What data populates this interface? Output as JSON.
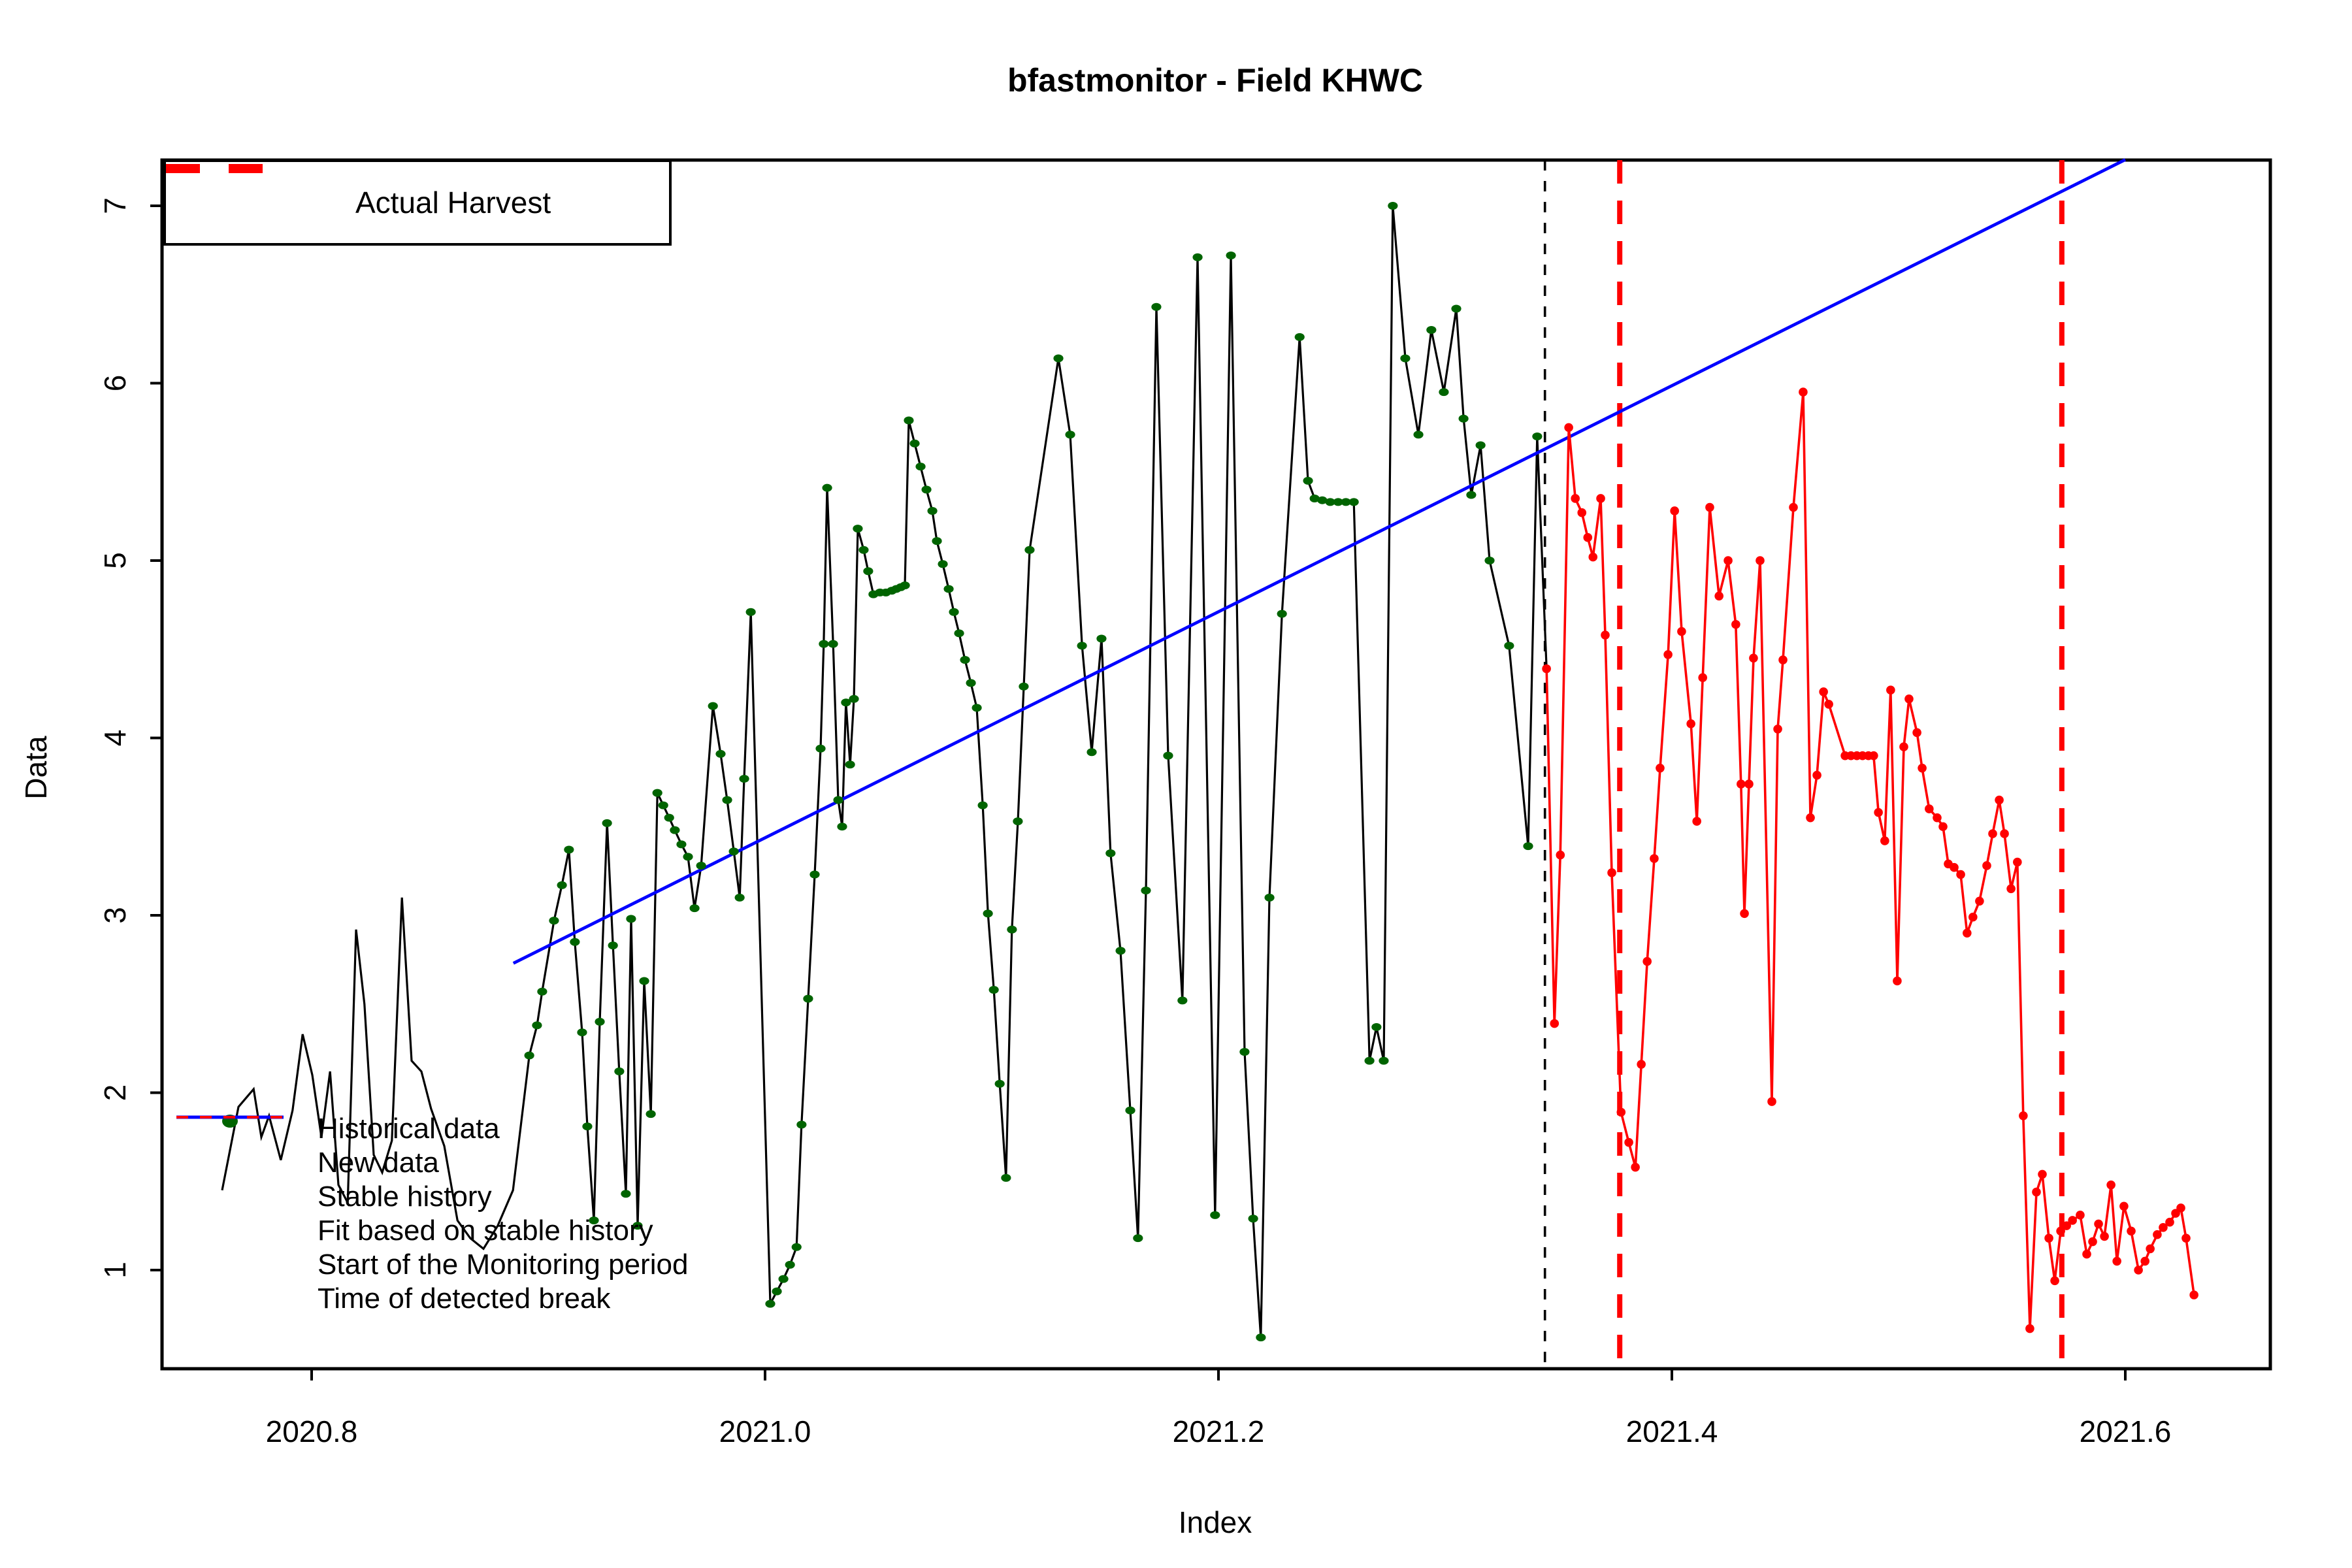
{
  "title": "bfastmonitor - Field KHWC",
  "x_axis_label": "Index",
  "y_axis_label": "Data",
  "legend_top": {
    "items": [
      {
        "label": "Actual Harvest",
        "style": "dashed-thick",
        "color": "#FF0000"
      }
    ]
  },
  "legend_bottom": {
    "items": [
      {
        "label": "Historical data",
        "style": "solid",
        "color": "#000000"
      },
      {
        "label": "New data",
        "style": "solid",
        "color": "#FF0000"
      },
      {
        "label": "Stable history",
        "style": "point",
        "color": "#006400"
      },
      {
        "label": "Fit based on stable history",
        "style": "solid",
        "color": "#0000FF"
      },
      {
        "label": "Start of the Monitoring period",
        "style": "dashed",
        "color": "#000000"
      },
      {
        "label": "Time of detected break",
        "style": "dashed",
        "color": "#FF0000"
      }
    ]
  },
  "chart_data": {
    "type": "line",
    "title": "bfastmonitor - Field KHWC",
    "xlabel": "Index",
    "ylabel": "Data",
    "xlim": [
      2020.734,
      2021.664
    ],
    "ylim": [
      0.44,
      7.26
    ],
    "x_ticks": [
      2020.8,
      2021.0,
      2021.2,
      2021.4,
      2021.6
    ],
    "y_ticks": [
      1,
      2,
      3,
      4,
      5,
      6,
      7
    ],
    "grid": false,
    "colors": {
      "historical": "#000000",
      "new_data": "#FF0000",
      "stable_history": "#006400",
      "fit": "#0000FF",
      "monitor_start": "#000000",
      "break_line": "#FF0000",
      "harvest_line": "#FF0000"
    },
    "vlines": {
      "monitor_start": {
        "t": 2021.344,
        "label": "Start of the Monitoring period"
      },
      "detected_break": {
        "t": 2021.377,
        "label": "Time of detected break"
      },
      "actual_harvest": {
        "t": 2021.572,
        "label": "Actual Harvest"
      }
    },
    "fit_line": {
      "points": [
        [
          2020.889,
          2.73
        ],
        [
          2021.6,
          7.26
        ]
      ]
    },
    "series": [
      {
        "name": "Historical data (pre-stable, line only)",
        "points": [
          [
            2020.7605,
            1.45
          ],
          [
            2020.7677,
            1.92
          ],
          [
            2020.7744,
            2.02
          ],
          [
            2020.7778,
            1.75
          ],
          [
            2020.7812,
            1.87
          ],
          [
            2020.7864,
            1.62
          ],
          [
            2020.7916,
            1.9
          ],
          [
            2020.796,
            2.33
          ],
          [
            2020.8003,
            2.1
          ],
          [
            2020.8043,
            1.75
          ],
          [
            2020.8081,
            2.12
          ],
          [
            2020.8118,
            1.48
          ],
          [
            2020.8159,
            1.38
          ],
          [
            2020.8196,
            2.92
          ],
          [
            2020.8233,
            2.5
          ],
          [
            2020.8274,
            1.65
          ],
          [
            2020.8311,
            1.55
          ],
          [
            2020.8354,
            1.73
          ],
          [
            2020.8398,
            3.1
          ],
          [
            2020.8441,
            2.18
          ],
          [
            2020.8484,
            2.12
          ],
          [
            2020.8527,
            1.91
          ],
          [
            2020.8585,
            1.7
          ],
          [
            2020.8643,
            1.28
          ],
          [
            2020.87,
            1.18
          ],
          [
            2020.8758,
            1.12
          ],
          [
            2020.8821,
            1.25
          ],
          [
            2020.8888,
            1.45
          ]
        ]
      },
      {
        "name": "Stable history (green points)",
        "points": [
          [
            2020.896,
            2.21
          ],
          [
            2020.8994,
            2.38
          ],
          [
            2020.9017,
            2.57
          ],
          [
            2020.9069,
            2.97
          ],
          [
            2020.9104,
            3.17
          ],
          [
            2020.9135,
            3.37
          ],
          [
            2020.9161,
            2.85
          ],
          [
            2020.9193,
            2.34
          ],
          [
            2020.9216,
            1.81
          ],
          [
            2020.9245,
            1.28
          ],
          [
            2020.9271,
            2.4
          ],
          [
            2020.9303,
            3.52
          ],
          [
            2020.9329,
            2.83
          ],
          [
            2020.9357,
            2.12
          ],
          [
            2020.9386,
            1.43
          ],
          [
            2020.9409,
            2.98
          ],
          [
            2020.9438,
            1.25
          ],
          [
            2020.9467,
            2.63
          ],
          [
            2020.9496,
            1.88
          ],
          [
            2020.9525,
            3.69
          ],
          [
            2020.9551,
            3.62
          ],
          [
            2020.9577,
            3.55
          ],
          [
            2020.9602,
            3.48
          ],
          [
            2020.9631,
            3.4
          ],
          [
            2020.966,
            3.33
          ],
          [
            2020.9689,
            3.04
          ],
          [
            2020.9718,
            3.28
          ],
          [
            2020.977,
            4.18
          ],
          [
            2020.9804,
            3.91
          ],
          [
            2020.9833,
            3.65
          ],
          [
            2020.9862,
            3.36
          ],
          [
            2020.9888,
            3.1
          ],
          [
            2020.9908,
            3.77
          ],
          [
            2020.9937,
            4.71
          ],
          [
            2021.0023,
            0.81
          ],
          [
            2021.0052,
            0.88
          ],
          [
            2021.0081,
            0.95
          ],
          [
            2021.011,
            1.03
          ],
          [
            2021.0139,
            1.13
          ],
          [
            2021.0161,
            1.82
          ],
          [
            2021.019,
            2.53
          ],
          [
            2021.0219,
            3.23
          ],
          [
            2021.0245,
            3.94
          ],
          [
            2021.0259,
            4.53
          ],
          [
            2021.0274,
            5.41
          ],
          [
            2021.03,
            4.53
          ],
          [
            2021.0323,
            3.65
          ],
          [
            2021.034,
            3.5
          ],
          [
            2021.0357,
            4.2
          ],
          [
            2021.0375,
            3.85
          ],
          [
            2021.0392,
            4.22
          ],
          [
            2021.0409,
            5.18
          ],
          [
            2021.0435,
            5.06
          ],
          [
            2021.0455,
            4.94
          ],
          [
            2021.0478,
            4.81
          ],
          [
            2021.0507,
            4.82
          ],
          [
            2021.0533,
            4.82
          ],
          [
            2021.0559,
            4.83
          ],
          [
            2021.0579,
            4.84
          ],
          [
            2021.0599,
            4.85
          ],
          [
            2021.0617,
            4.86
          ],
          [
            2021.0634,
            5.79
          ],
          [
            2021.066,
            5.66
          ],
          [
            2021.0686,
            5.53
          ],
          [
            2021.0712,
            5.4
          ],
          [
            2021.0738,
            5.28
          ],
          [
            2021.0758,
            5.11
          ],
          [
            2021.0784,
            4.98
          ],
          [
            2021.081,
            4.84
          ],
          [
            2021.0833,
            4.71
          ],
          [
            2021.0856,
            4.59
          ],
          [
            2021.0882,
            4.44
          ],
          [
            2021.0908,
            4.31
          ],
          [
            2021.0934,
            4.17
          ],
          [
            2021.096,
            3.62
          ],
          [
            2021.0983,
            3.01
          ],
          [
            2021.1009,
            2.58
          ],
          [
            2021.1035,
            2.05
          ],
          [
            2021.1063,
            1.52
          ],
          [
            2021.1089,
            2.92
          ],
          [
            2021.1115,
            3.53
          ],
          [
            2021.1141,
            4.29
          ],
          [
            2021.1167,
            5.06
          ],
          [
            2021.1294,
            6.14
          ],
          [
            2021.1346,
            5.71
          ],
          [
            2021.1398,
            4.52
          ],
          [
            2021.1441,
            3.92
          ],
          [
            2021.1484,
            4.56
          ],
          [
            2021.1524,
            3.35
          ],
          [
            2021.1568,
            2.8
          ],
          [
            2021.1611,
            1.9
          ],
          [
            2021.1645,
            1.18
          ],
          [
            2021.168,
            3.14
          ],
          [
            2021.1726,
            6.43
          ],
          [
            2021.1778,
            3.9
          ],
          [
            2021.1841,
            2.52
          ],
          [
            2021.1908,
            6.71
          ],
          [
            2021.1985,
            1.31
          ],
          [
            2021.2055,
            6.72
          ],
          [
            2021.2115,
            2.23
          ],
          [
            2021.2153,
            1.29
          ],
          [
            2021.2187,
            0.62
          ],
          [
            2021.2225,
            3.1
          ],
          [
            2021.228,
            4.7
          ],
          [
            2021.2358,
            6.26
          ],
          [
            2021.2395,
            5.45
          ],
          [
            2021.2424,
            5.35
          ],
          [
            2021.2458,
            5.34
          ],
          [
            2021.2493,
            5.33
          ],
          [
            2021.2528,
            5.33
          ],
          [
            2021.2562,
            5.33
          ],
          [
            2021.2597,
            5.33
          ],
          [
            2021.2666,
            2.18
          ],
          [
            2021.2697,
            2.37
          ],
          [
            2021.2729,
            2.18
          ],
          [
            2021.2769,
            7.0
          ],
          [
            2021.2824,
            6.14
          ],
          [
            2021.2882,
            5.71
          ],
          [
            2021.2939,
            6.3
          ],
          [
            2021.2994,
            5.95
          ],
          [
            2021.3049,
            6.42
          ],
          [
            2021.3081,
            5.8
          ],
          [
            2021.3115,
            5.37
          ],
          [
            2021.3156,
            5.65
          ],
          [
            2021.3196,
            5.0
          ],
          [
            2021.3282,
            4.52
          ],
          [
            2021.3366,
            3.39
          ],
          [
            2021.3406,
            5.7
          ]
        ]
      },
      {
        "name": "New data (red)",
        "points": [
          [
            2021.3447,
            4.39
          ],
          [
            2021.3482,
            2.39
          ],
          [
            2021.3508,
            3.34
          ],
          [
            2021.3545,
            5.75
          ],
          [
            2021.3574,
            5.35
          ],
          [
            2021.3603,
            5.27
          ],
          [
            2021.3629,
            5.13
          ],
          [
            2021.3652,
            5.02
          ],
          [
            2021.3686,
            5.35
          ],
          [
            2021.3706,
            4.58
          ],
          [
            2021.3735,
            3.24
          ],
          [
            2021.3776,
            1.89
          ],
          [
            2021.381,
            1.72
          ],
          [
            2021.3839,
            1.58
          ],
          [
            2021.3865,
            2.16
          ],
          [
            2021.3891,
            2.74
          ],
          [
            2021.3922,
            3.32
          ],
          [
            2021.3948,
            3.83
          ],
          [
            2021.3983,
            4.47
          ],
          [
            2021.4012,
            5.28
          ],
          [
            2021.4043,
            4.6
          ],
          [
            2021.4084,
            4.08
          ],
          [
            2021.411,
            3.53
          ],
          [
            2021.4136,
            4.34
          ],
          [
            2021.4167,
            5.3
          ],
          [
            2021.4208,
            4.8
          ],
          [
            2021.4248,
            5.0
          ],
          [
            2021.4282,
            4.64
          ],
          [
            2021.4305,
            3.74
          ],
          [
            2021.432,
            3.01
          ],
          [
            2021.434,
            3.74
          ],
          [
            2021.436,
            4.45
          ],
          [
            2021.4389,
            5.0
          ],
          [
            2021.4441,
            1.95
          ],
          [
            2021.4467,
            4.05
          ],
          [
            2021.449,
            4.44
          ],
          [
            2021.4536,
            5.3
          ],
          [
            2021.4579,
            5.95
          ],
          [
            2021.4611,
            3.55
          ],
          [
            2021.464,
            3.79
          ],
          [
            2021.4669,
            4.26
          ],
          [
            2021.4692,
            4.19
          ],
          [
            2021.4764,
            3.9
          ],
          [
            2021.479,
            3.9
          ],
          [
            2021.4816,
            3.9
          ],
          [
            2021.4841,
            3.9
          ],
          [
            2021.4867,
            3.9
          ],
          [
            2021.489,
            3.9
          ],
          [
            2021.4911,
            3.58
          ],
          [
            2021.4939,
            3.42
          ],
          [
            2021.4965,
            4.27
          ],
          [
            2021.4994,
            2.63
          ],
          [
            2021.5023,
            3.95
          ],
          [
            2021.5046,
            4.22
          ],
          [
            2021.5081,
            4.03
          ],
          [
            2021.5104,
            3.83
          ],
          [
            2021.5135,
            3.6
          ],
          [
            2021.517,
            3.55
          ],
          [
            2021.5196,
            3.5
          ],
          [
            2021.5219,
            3.29
          ],
          [
            2021.5245,
            3.27
          ],
          [
            2021.5274,
            3.23
          ],
          [
            2021.5302,
            2.9
          ],
          [
            2021.5328,
            2.99
          ],
          [
            2021.5357,
            3.08
          ],
          [
            2021.5389,
            3.28
          ],
          [
            2021.5415,
            3.46
          ],
          [
            2021.5444,
            3.65
          ],
          [
            2021.5467,
            3.46
          ],
          [
            2021.5496,
            3.15
          ],
          [
            2021.5524,
            3.3
          ],
          [
            2021.555,
            1.87
          ],
          [
            2021.5579,
            0.67
          ],
          [
            2021.5608,
            1.44
          ],
          [
            2021.5634,
            1.54
          ],
          [
            2021.5663,
            1.18
          ],
          [
            2021.5689,
            0.94
          ],
          [
            2021.5715,
            1.22
          ],
          [
            2021.5741,
            1.25
          ],
          [
            2021.5767,
            1.28
          ],
          [
            2021.5801,
            1.31
          ],
          [
            2021.583,
            1.09
          ],
          [
            2021.5856,
            1.16
          ],
          [
            2021.5882,
            1.26
          ],
          [
            2021.5908,
            1.19
          ],
          [
            2021.5937,
            1.48
          ],
          [
            2021.5963,
            1.05
          ],
          [
            2021.5994,
            1.36
          ],
          [
            2021.6026,
            1.22
          ],
          [
            2021.6058,
            1.0
          ],
          [
            2021.6087,
            1.05
          ],
          [
            2021.611,
            1.12
          ],
          [
            2021.6141,
            1.2
          ],
          [
            2021.6167,
            1.24
          ],
          [
            2021.6196,
            1.27
          ],
          [
            2021.6222,
            1.32
          ],
          [
            2021.6245,
            1.35
          ],
          [
            2021.6268,
            1.18
          ],
          [
            2021.6303,
            0.86
          ]
        ]
      }
    ]
  }
}
